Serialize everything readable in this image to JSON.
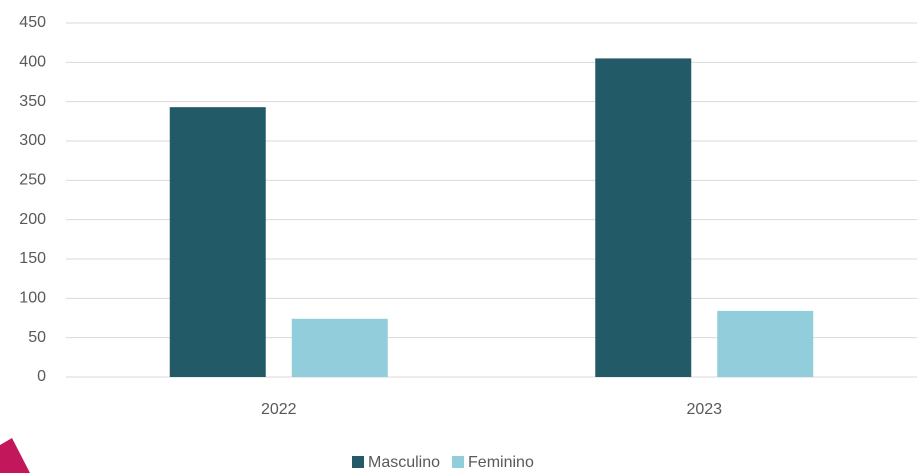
{
  "chart_data": {
    "type": "bar",
    "categories": [
      "2022",
      "2023"
    ],
    "series": [
      {
        "name": "Masculino",
        "color": "#235a68",
        "values": [
          343,
          405
        ]
      },
      {
        "name": "Feminino",
        "color": "#92cddc",
        "values": [
          74,
          84
        ]
      }
    ],
    "ylim": [
      0,
      450
    ],
    "yticks": [
      0,
      50,
      100,
      150,
      200,
      250,
      300,
      350,
      400,
      450
    ],
    "grid": true,
    "legend": "bottom"
  }
}
